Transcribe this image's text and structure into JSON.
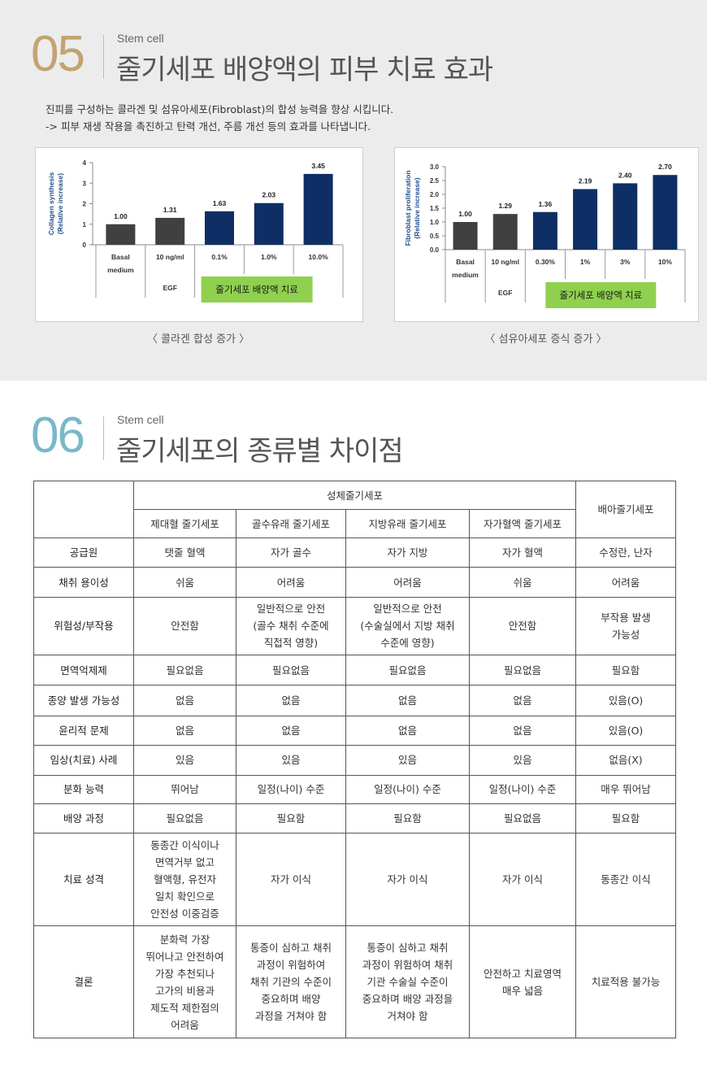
{
  "section05": {
    "number": "05",
    "kicker": "Stem cell",
    "title": "줄기세포 배양액의 피부 치료 효과",
    "intro": [
      "진피를 구성하는 콜라겐 및 섬유아세포(Fibroblast)의 합성 능력을 향상 시킵니다.",
      "-> 피부 재생 작용을 촉진하고 탄력 개선, 주름 개선 등의 효과를 나타냅니다."
    ]
  },
  "chart_data": [
    {
      "type": "bar",
      "ylabel": "Collagen synthesis (Relative increase)",
      "ylabel_lines": [
        "Collagen synthesis",
        "(Relative increase)"
      ],
      "ylim": [
        0,
        4
      ],
      "yticks": [
        "0",
        "1",
        "2",
        "3",
        "4"
      ],
      "categories": [
        "Basal medium",
        "10 ng/ml",
        "0.1%",
        "1.0%",
        "10.0%"
      ],
      "category_lines": [
        [
          "Basal",
          "medium"
        ],
        [
          "10 ng/ml"
        ],
        [
          "0.1%"
        ],
        [
          "1.0%"
        ],
        [
          "10.0%"
        ]
      ],
      "values": [
        1.0,
        1.31,
        1.63,
        2.03,
        3.45
      ],
      "value_labels": [
        "1.00",
        "1.31",
        "1.63",
        "2.03",
        "3.45"
      ],
      "bar_colors": [
        "#404040",
        "#404040",
        "#0e2f65",
        "#0e2f65",
        "#0e2f65"
      ],
      "group_label": "EGF",
      "treatment_label": "줄기세포 배양액 치료",
      "treatment_color": "#8fd14f",
      "caption": "〈 콜라겐 합성 증가 〉"
    },
    {
      "type": "bar",
      "ylabel": "Fibroblast proliferation (Relative increase)",
      "ylabel_lines": [
        "Fibroblast proliferation",
        "(Relative increase)"
      ],
      "ylim": [
        0,
        3
      ],
      "yticks": [
        "0.0",
        "0.5",
        "1.0",
        "1.5",
        "2.0",
        "2.5",
        "3.0"
      ],
      "categories": [
        "Basal medium",
        "10 ng/ml",
        "0.30%",
        "1%",
        "3%",
        "10%"
      ],
      "category_lines": [
        [
          "Basal",
          "medium"
        ],
        [
          "10 ng/ml"
        ],
        [
          "0.30%"
        ],
        [
          "1%"
        ],
        [
          "3%"
        ],
        [
          "10%"
        ]
      ],
      "values": [
        1.0,
        1.29,
        1.36,
        2.19,
        2.4,
        2.7
      ],
      "value_labels": [
        "1.00",
        "1.29",
        "1.36",
        "2.19",
        "2.40",
        "2.70"
      ],
      "bar_colors": [
        "#404040",
        "#404040",
        "#0e2f65",
        "#0e2f65",
        "#0e2f65",
        "#0e2f65"
      ],
      "group_label": "EGF",
      "treatment_label": "줄기세포 배양액 치료",
      "treatment_color": "#8fd14f",
      "caption": "〈 섬유아세포 증식 증가 〉"
    }
  ],
  "section06": {
    "number": "06",
    "kicker": "Stem cell",
    "title": "줄기세포의 종류별 차이점",
    "table": {
      "group_adult": "성체줄기세포",
      "group_embryonic": "배아줄기세포",
      "columns": [
        "제대혈 줄기세포",
        "골수유래 줄기세포",
        "지방유래 줄기세포",
        "자가혈액 줄기세포"
      ],
      "rows": [
        {
          "label": "공급원",
          "cells": [
            "탯줄 혈액",
            "자가 골수",
            "자가 지방",
            "자가 혈액",
            "수정란, 난자"
          ]
        },
        {
          "label": "채취 용이성",
          "cells": [
            "쉬움",
            "어려움",
            "어려움",
            "쉬움",
            "어려움"
          ]
        },
        {
          "label": "위험성/부작용",
          "cells": [
            "안전함",
            "일반적으로 안전\n(골수 채취 수준에\n직접적 영향)",
            "일반적으로 안전\n(수술실에서 지방 채취\n수준에 영향)",
            "안전함",
            "부작용 발생\n가능성"
          ]
        },
        {
          "label": "면역억제제",
          "cells": [
            "필요없음",
            "필요없음",
            "필요없음",
            "필요없음",
            "필요함"
          ]
        },
        {
          "label": "종양 발생 가능성",
          "cells": [
            "없음",
            "없음",
            "없음",
            "없음",
            "있음(O)"
          ]
        },
        {
          "label": "윤리적 문제",
          "cells": [
            "없음",
            "없음",
            "없음",
            "없음",
            "있음(O)"
          ]
        },
        {
          "label": "임상(치료) 사례",
          "cells": [
            "있음",
            "있음",
            "있음",
            "있음",
            "없음(X)"
          ]
        },
        {
          "label": "분화 능력",
          "cells": [
            "뛰어남",
            "일정(나이) 수준",
            "일정(나이) 수준",
            "일정(나이) 수준",
            "매우 뛰어남"
          ]
        },
        {
          "label": "배양 과정",
          "cells": [
            "필요없음",
            "필요함",
            "필요함",
            "필요없음",
            "필요함"
          ]
        },
        {
          "label": "치료 성격",
          "cells": [
            "동종간 이식이나\n면역거부 없고\n혈액형, 유전자\n일치 확인으로\n안전성 이중검증",
            "자가 이식",
            "자가 이식",
            "자가 이식",
            "동종간 이식"
          ]
        },
        {
          "label": "결론",
          "cells": [
            "분화력 가장\n뛰어나고 안전하여\n가장 추천되나\n고가의 비용과\n제도적 제한점의\n어려움",
            "통증이 심하고 채취\n과정이 위험하여\n채취 기관의 수준이\n중요하며 배양\n과정을 거쳐야 함",
            "통증이 심하고 채취\n과정이 위험하여 채취\n기관 수술실 수준이\n중요하며 배양 과정을\n거쳐야 함",
            "안전하고 치료영역\n매우 넓음",
            "치료적용 불가능"
          ]
        }
      ]
    }
  }
}
